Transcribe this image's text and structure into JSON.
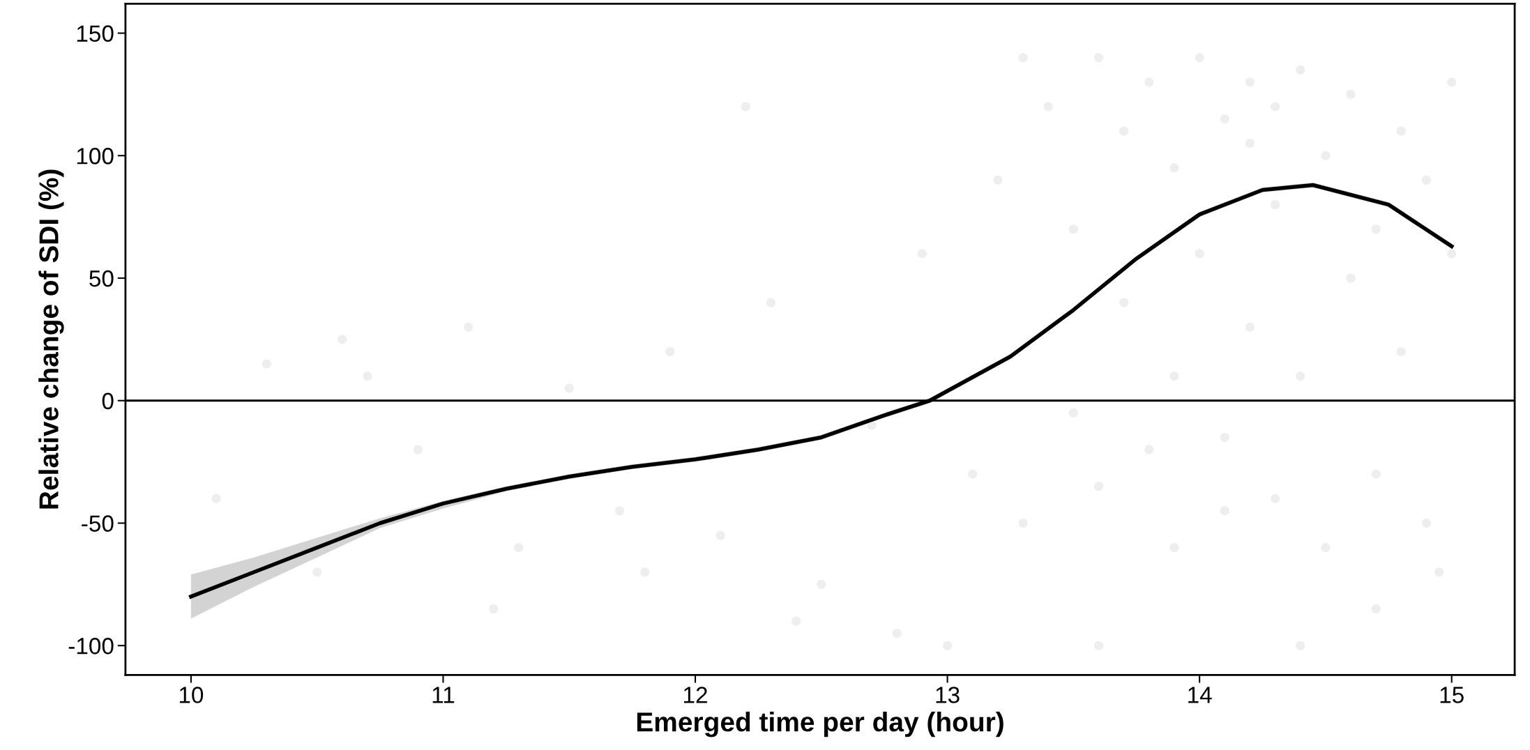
{
  "chart_data": {
    "type": "line",
    "xlabel": "Emerged time per day (hour)",
    "ylabel": "Relative change of SDI (%)",
    "xlim": [
      9.74,
      15.25
    ],
    "ylim": [
      -112,
      162
    ],
    "xticks": [
      10,
      11,
      12,
      13,
      14,
      15
    ],
    "yticks": [
      -100,
      -50,
      0,
      50,
      100,
      150
    ],
    "grid": false,
    "series": [
      {
        "type": "scatter",
        "marker": "circle",
        "color": "#e3e3e3",
        "x": [
          10.1,
          10.3,
          10.5,
          10.7,
          10.9,
          11.1,
          11.3,
          11.5,
          11.7,
          11.9,
          12.1,
          12.3,
          12.5,
          12.7,
          12.9,
          13.1,
          13.2,
          13.3,
          13.4,
          13.5,
          13.5,
          13.6,
          13.6,
          13.7,
          13.7,
          13.8,
          13.8,
          13.9,
          13.9,
          14.0,
          14.0,
          14.1,
          14.1,
          14.2,
          14.2,
          14.2,
          14.3,
          14.3,
          14.3,
          14.4,
          14.4,
          14.5,
          14.5,
          14.6,
          14.6,
          14.7,
          14.7,
          14.8,
          14.8,
          14.9,
          14.9,
          15.0,
          15.0,
          11.2,
          11.8,
          12.4,
          12.8,
          13.0,
          13.3,
          13.6,
          13.9,
          14.1,
          14.4,
          14.7,
          14.95,
          10.6,
          12.2
        ],
        "values": [
          -40,
          15,
          -70,
          10,
          -20,
          30,
          -60,
          5,
          -45,
          20,
          -55,
          40,
          -75,
          -10,
          60,
          -30,
          90,
          -50,
          120,
          -5,
          70,
          140,
          -35,
          40,
          110,
          -20,
          130,
          10,
          95,
          60,
          140,
          115,
          -15,
          105,
          130,
          30,
          120,
          -40,
          80,
          135,
          10,
          100,
          -60,
          125,
          50,
          70,
          -30,
          110,
          20,
          90,
          -50,
          130,
          60,
          -85,
          -70,
          -90,
          -95,
          -100,
          140,
          -100,
          -60,
          -45,
          -100,
          -85,
          -70,
          25,
          120
        ]
      },
      {
        "color": "#000000",
        "x": [
          10,
          10.25,
          10.5,
          10.75,
          11,
          11.25,
          11.5,
          11.75,
          12,
          12.25,
          12.5,
          12.75,
          12.93,
          13.25,
          13.5,
          13.75,
          14,
          14.25,
          14.45,
          14.75,
          15
        ],
        "values": [
          -80,
          -70,
          -60,
          -50,
          -42,
          -36,
          -31,
          -27,
          -24,
          -20,
          -15,
          -6,
          0,
          18,
          37,
          58,
          76,
          86,
          88,
          80,
          63
        ],
        "lower": [
          -89,
          -76,
          -64,
          -52,
          -44,
          -37,
          -32,
          -28,
          -25,
          -21,
          -16,
          -7,
          -1,
          17,
          36,
          57,
          75,
          85,
          87,
          79,
          62
        ],
        "upper": [
          -71,
          -64,
          -56,
          -48,
          -41,
          -35,
          -30,
          -26,
          -23,
          -19,
          -14,
          -5,
          1,
          19,
          38,
          59,
          77,
          87,
          89,
          81,
          64
        ]
      }
    ],
    "ref_lines": [
      {
        "axis": "y",
        "value": 0,
        "color": "#000000",
        "line_style": "solid"
      }
    ]
  }
}
